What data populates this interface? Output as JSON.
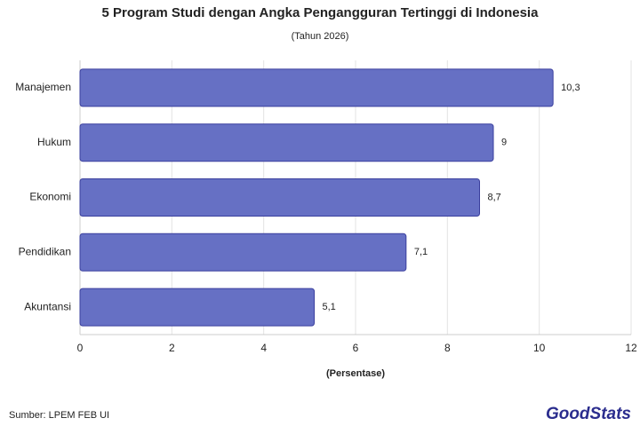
{
  "chart_data": {
    "type": "barh",
    "title": "5 Program Studi dengan Angka Pengangguran Tertinggi di Indonesia",
    "subtitle": "(Tahun 2026)",
    "categories": [
      "Manajemen",
      "Hukum",
      "Ekonomi",
      "Pendidikan",
      "Akuntansi"
    ],
    "values": [
      10.3,
      9,
      8.7,
      7.1,
      5.1
    ],
    "value_labels": [
      "10,3",
      "9",
      "8,7",
      "7,1",
      "5,1"
    ],
    "color": "#6670c4",
    "xlim": [
      0,
      12
    ],
    "xticks": [
      0,
      2,
      4,
      6,
      8,
      10,
      12
    ],
    "xlabel": "(Persentase)",
    "grid": true,
    "source": "Sumber: LPEM FEB UI"
  },
  "logo": "GoodStats"
}
